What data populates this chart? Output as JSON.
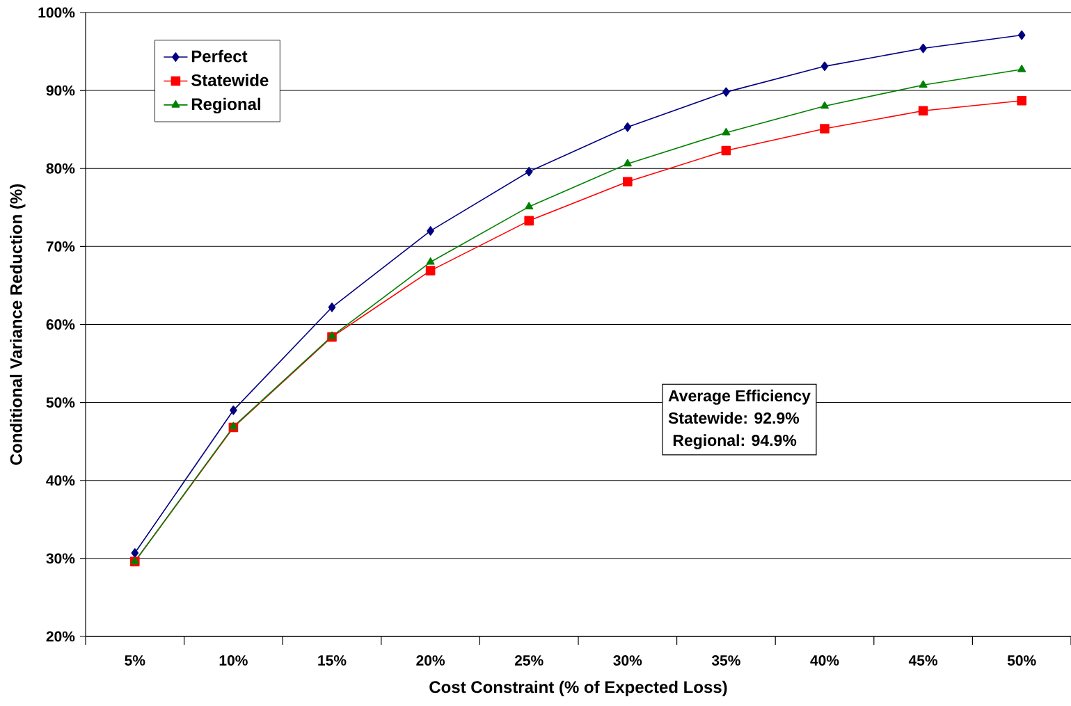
{
  "chart_data": {
    "type": "line",
    "xlabel": "Cost Constraint (% of Expected Loss)",
    "ylabel": "Conditional Variance Reduction (%)",
    "categories": [
      "5%",
      "10%",
      "15%",
      "20%",
      "25%",
      "30%",
      "35%",
      "40%",
      "45%",
      "50%"
    ],
    "series": [
      {
        "name": "Perfect",
        "color": "#000080",
        "marker": "diamond",
        "values": [
          30.7,
          49.0,
          62.2,
          72.0,
          79.6,
          85.3,
          89.8,
          93.1,
          95.4,
          97.1
        ]
      },
      {
        "name": "Statewide",
        "color": "#ff0000",
        "marker": "square",
        "values": [
          29.6,
          46.8,
          58.4,
          66.9,
          73.3,
          78.3,
          82.3,
          85.1,
          87.4,
          88.7
        ]
      },
      {
        "name": "Regional",
        "color": "#008000",
        "marker": "triangle",
        "values": [
          29.6,
          46.9,
          58.5,
          68.0,
          75.1,
          80.6,
          84.6,
          88.0,
          90.7,
          92.7
        ]
      }
    ],
    "ylim": [
      20,
      100
    ],
    "yticks": [
      {
        "value": 20,
        "label": "20%"
      },
      {
        "value": 30,
        "label": "30%"
      },
      {
        "value": 40,
        "label": "40%"
      },
      {
        "value": 50,
        "label": "50%"
      },
      {
        "value": 60,
        "label": "60%"
      },
      {
        "value": 70,
        "label": "70%"
      },
      {
        "value": 80,
        "label": "80%"
      },
      {
        "value": 90,
        "label": "90%"
      },
      {
        "value": 100,
        "label": "100%"
      }
    ],
    "grid": "y",
    "legend": "top left",
    "line_style": "solid",
    "annotations": [
      "Average Efficiency",
      "Statewide:  92.9%",
      "  Regional:  94.9%"
    ]
  }
}
